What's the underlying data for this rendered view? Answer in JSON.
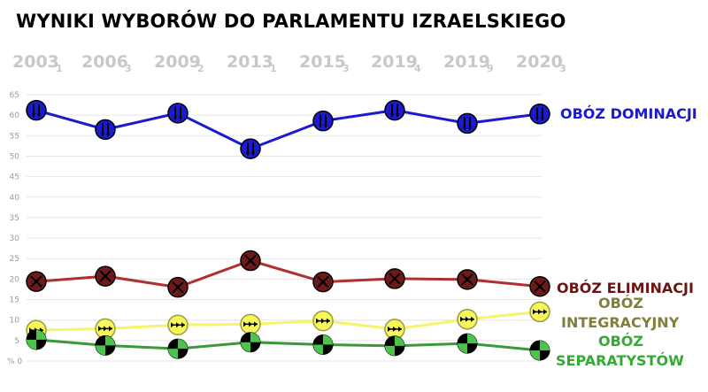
{
  "page_title": "WYNIKI WYBORÓW DO PARLAMENTU IZRAELSKIEGO",
  "chart_data": {
    "type": "line",
    "title": "WYNIKI WYBORÓW DO PARLAMENTU IZRAELSKIEGO",
    "x": [
      {
        "year": "2003",
        "sub": "1"
      },
      {
        "year": "2006",
        "sub": "3"
      },
      {
        "year": "2009",
        "sub": "2"
      },
      {
        "year": "2013",
        "sub": "1"
      },
      {
        "year": "2015",
        "sub": "3"
      },
      {
        "year": "2019",
        "sub": "4"
      },
      {
        "year": "2019",
        "sub": "9"
      },
      {
        "year": "2020",
        "sub": "3"
      }
    ],
    "yticks": [
      "0",
      "5",
      "10",
      "15",
      "20",
      "25",
      "30",
      "35",
      "40",
      "45",
      "50",
      "55",
      "60",
      "65"
    ],
    "y_zero_label": "% 0",
    "ylim": [
      0,
      65
    ],
    "grid": true,
    "series": [
      {
        "name": "OBÓZ DOMINACJI",
        "color": "#1a1ad0",
        "label_color": "#1a1acc",
        "values": [
          61.2,
          56.5,
          60.5,
          51.8,
          58.6,
          61.2,
          58.0,
          60.3
        ]
      },
      {
        "name": "OBÓZ ELIMINACJI",
        "color": "#b03030",
        "label_color": "#6b1414",
        "values": [
          19.4,
          20.7,
          18.0,
          24.5,
          19.3,
          20.1,
          19.9,
          18.2
        ]
      },
      {
        "name": "OBÓZ INTEGRACYJNY",
        "color": "#f5f56a",
        "label_color": "#80803a",
        "values": [
          7.5,
          7.9,
          8.8,
          9.0,
          9.8,
          7.8,
          10.2,
          12.0
        ]
      },
      {
        "name": "OBÓZ SEPARATYSTÓW",
        "color": "#3a9a3a",
        "label_color": "#33aa33",
        "values": [
          5.2,
          3.8,
          3.0,
          4.6,
          4.0,
          3.7,
          4.3,
          2.6
        ]
      }
    ]
  },
  "labels": {
    "dominacji": "OBÓZ DOMINACJI",
    "eliminacji": "OBÓZ ELIMINACJI",
    "integracyjny_1": "OBÓZ",
    "integracyjny_2": "INTEGRACYJNY",
    "separatystow_1": "OBÓZ",
    "separatystow_2": "SEPARATYSTÓW"
  }
}
